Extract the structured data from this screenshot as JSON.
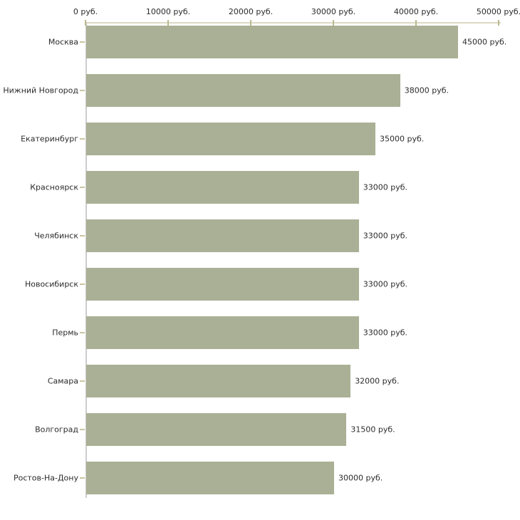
{
  "chart_data": {
    "type": "bar",
    "orientation": "horizontal",
    "title": "",
    "xlabel": "",
    "ylabel": "",
    "unit": "руб.",
    "categories": [
      "Москва",
      "Нижний Новгород",
      "Екатеринбург",
      "Красноярск",
      "Челябинск",
      "Новосибирск",
      "Пермь",
      "Самара",
      "Волгоград",
      "Ростов-На-Дону"
    ],
    "values": [
      45000,
      38000,
      35000,
      33000,
      33000,
      33000,
      33000,
      32000,
      31500,
      30000
    ],
    "value_labels": [
      "45000 руб.",
      "38000 руб.",
      "35000 руб.",
      "33000 руб.",
      "33000 руб.",
      "33000 руб.",
      "33000 руб.",
      "32000 руб.",
      "31500 руб.",
      "30000 руб."
    ],
    "x_ticks": [
      0,
      10000,
      20000,
      30000,
      40000,
      50000
    ],
    "x_tick_labels": [
      "0 руб.",
      "10000 руб.",
      "20000 руб.",
      "30000 руб.",
      "40000 руб.",
      "50000 руб."
    ],
    "xlim": [
      0,
      50000
    ],
    "grid": false,
    "legend": false,
    "axis_position": "top",
    "colors": {
      "bar": "#aab095",
      "top_axis": "#dcd9c3",
      "x_tick": "#bcb890",
      "category_axis": "#cccccc",
      "category_tick": "#c9c5a0",
      "text": "#2b2b2b",
      "background": "#ffffff"
    }
  }
}
